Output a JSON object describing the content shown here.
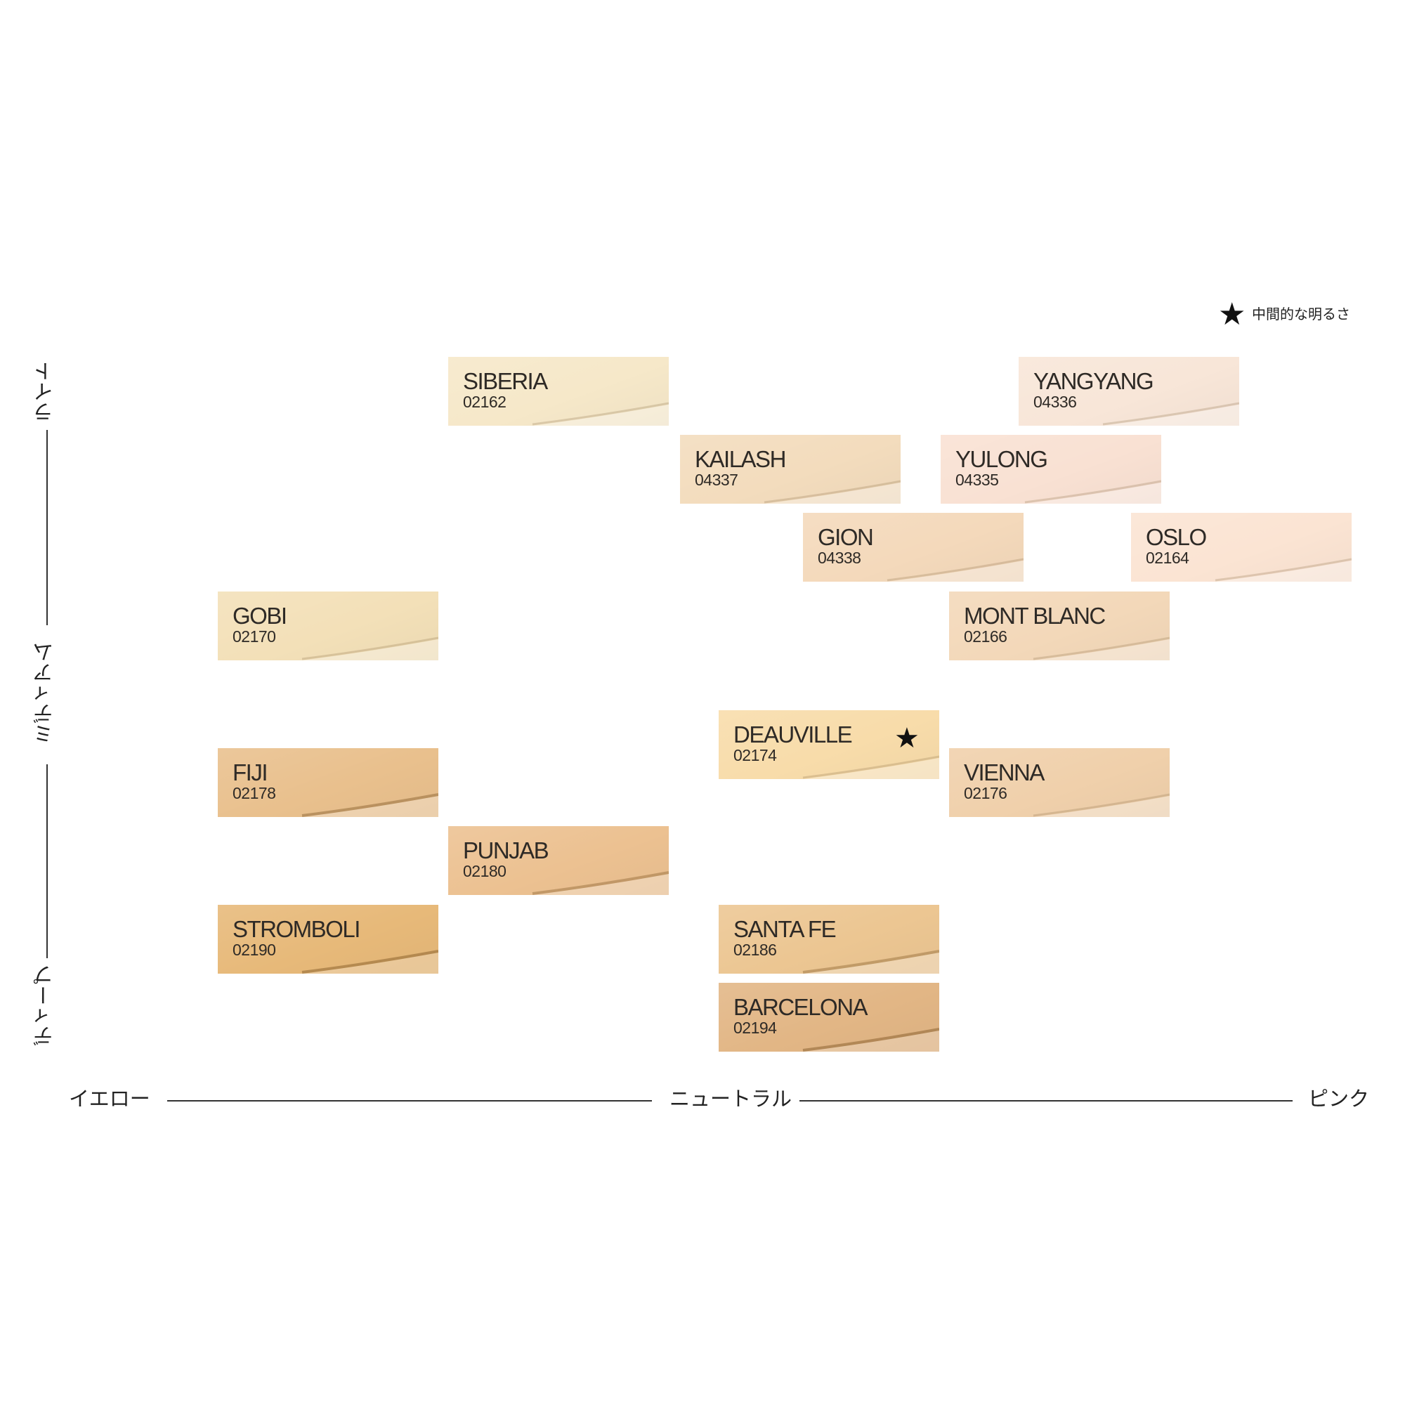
{
  "legend": {
    "star": "★",
    "text": "中間的な明るさ"
  },
  "axes": {
    "x": {
      "left": "イエロー",
      "center": "ニュートラル",
      "right": "ピンク"
    },
    "y": {
      "top": "ライト",
      "middle": "ミディアム",
      "bottom": "ディープ"
    }
  },
  "shades": [
    {
      "name": "SIBERIA",
      "code": "02162",
      "color": "#f6e8c9"
    },
    {
      "name": "YANGYANG",
      "code": "04336",
      "color": "#f8e6d8"
    },
    {
      "name": "KAILASH",
      "code": "04337",
      "color": "#f3dcbd"
    },
    {
      "name": "YULONG",
      "code": "04335",
      "color": "#f9e1d3"
    },
    {
      "name": "GION",
      "code": "04338",
      "color": "#f4d9bb"
    },
    {
      "name": "OSLO",
      "code": "02164",
      "color": "#fbe4d3"
    },
    {
      "name": "GOBI",
      "code": "02170",
      "color": "#f3e0b8"
    },
    {
      "name": "MONT BLANC",
      "code": "02166",
      "color": "#f3d8b9"
    },
    {
      "name": "DEAUVILLE",
      "code": "02174",
      "color": "#f8dcaa",
      "star": "★"
    },
    {
      "name": "FIJI",
      "code": "02178",
      "color": "#e9c08d"
    },
    {
      "name": "VIENNA",
      "code": "02176",
      "color": "#f0d0ab"
    },
    {
      "name": "PUNJAB",
      "code": "02180",
      "color": "#ecc191"
    },
    {
      "name": "STROMBOLI",
      "code": "02190",
      "color": "#e7b979"
    },
    {
      "name": "SANTA FE",
      "code": "02186",
      "color": "#ecc692"
    },
    {
      "name": "BARCELONA",
      "code": "02194",
      "color": "#e2b685"
    }
  ]
}
